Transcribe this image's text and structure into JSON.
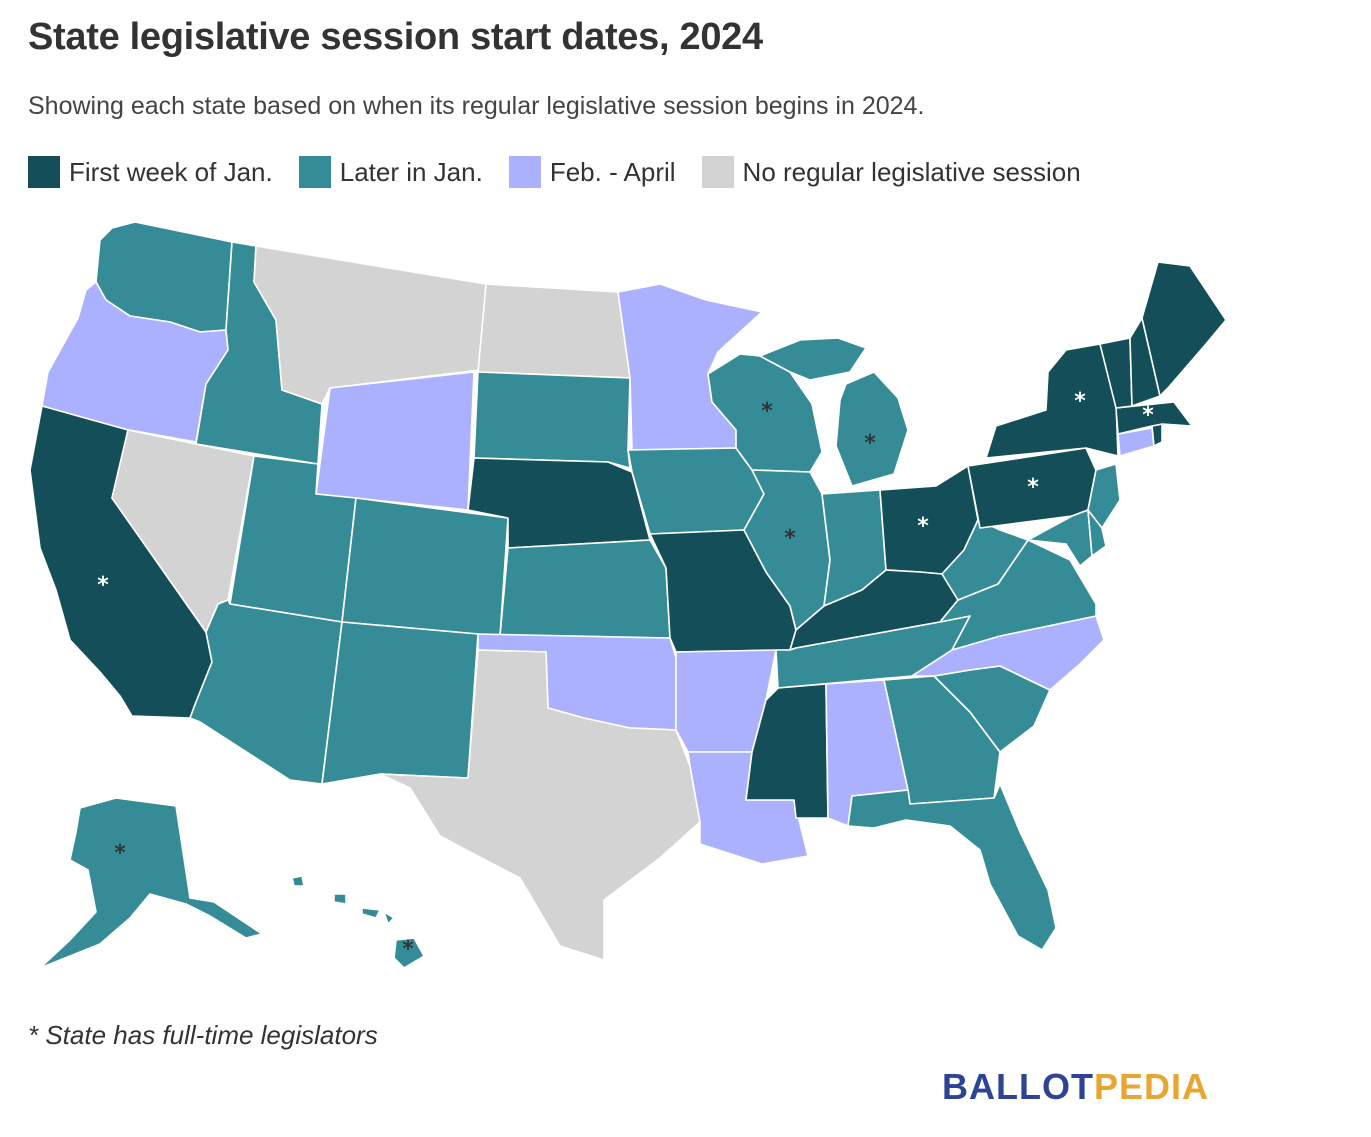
{
  "title": "State legislative session start dates, 2024",
  "subtitle": "Showing each state based on when its regular legislative session begins in 2024.",
  "colors": {
    "first_week": "#144f59",
    "later_jan": "#358c96",
    "feb_april": "#abb1ff",
    "none": "#d3d3d3"
  },
  "legend": [
    {
      "label": "First week of Jan.",
      "color": "#144f59"
    },
    {
      "label": "Later in Jan.",
      "color": "#358c96"
    },
    {
      "label": "Feb. - April",
      "color": "#abb1ff"
    },
    {
      "label": "No regular legislative session",
      "color": "#d3d3d3"
    }
  ],
  "categories": {
    "first_week": [
      "California",
      "Nebraska",
      "Missouri",
      "Kentucky",
      "Mississippi",
      "Ohio",
      "Pennsylvania",
      "New York",
      "Vermont",
      "New Hampshire",
      "Maine",
      "Massachusetts",
      "Rhode Island"
    ],
    "later_jan": [
      "Washington",
      "Idaho",
      "Utah",
      "Arizona",
      "Colorado",
      "New Mexico",
      "South Dakota",
      "Kansas",
      "Iowa",
      "Wisconsin",
      "Illinois",
      "Michigan",
      "Indiana",
      "Tennessee",
      "Georgia",
      "South Carolina",
      "Florida",
      "West Virginia",
      "Virginia",
      "Maryland",
      "Delaware",
      "New Jersey",
      "Alaska",
      "Hawaii"
    ],
    "feb_april": [
      "Oregon",
      "Wyoming",
      "Minnesota",
      "Oklahoma",
      "Arkansas",
      "Louisiana",
      "Alabama",
      "North Carolina",
      "Connecticut"
    ],
    "none": [
      "Montana",
      "North Dakota",
      "Nevada",
      "Texas"
    ]
  },
  "full_time_marker": "*",
  "full_time_states": [
    "California",
    "Alaska",
    "Hawaii",
    "Wisconsin",
    "Michigan",
    "Illinois",
    "Ohio",
    "Pennsylvania",
    "New York",
    "Massachusetts"
  ],
  "footnote": "* State has full-time legislators",
  "logo": {
    "part1": "BALLOT",
    "part2": "PEDIA"
  }
}
